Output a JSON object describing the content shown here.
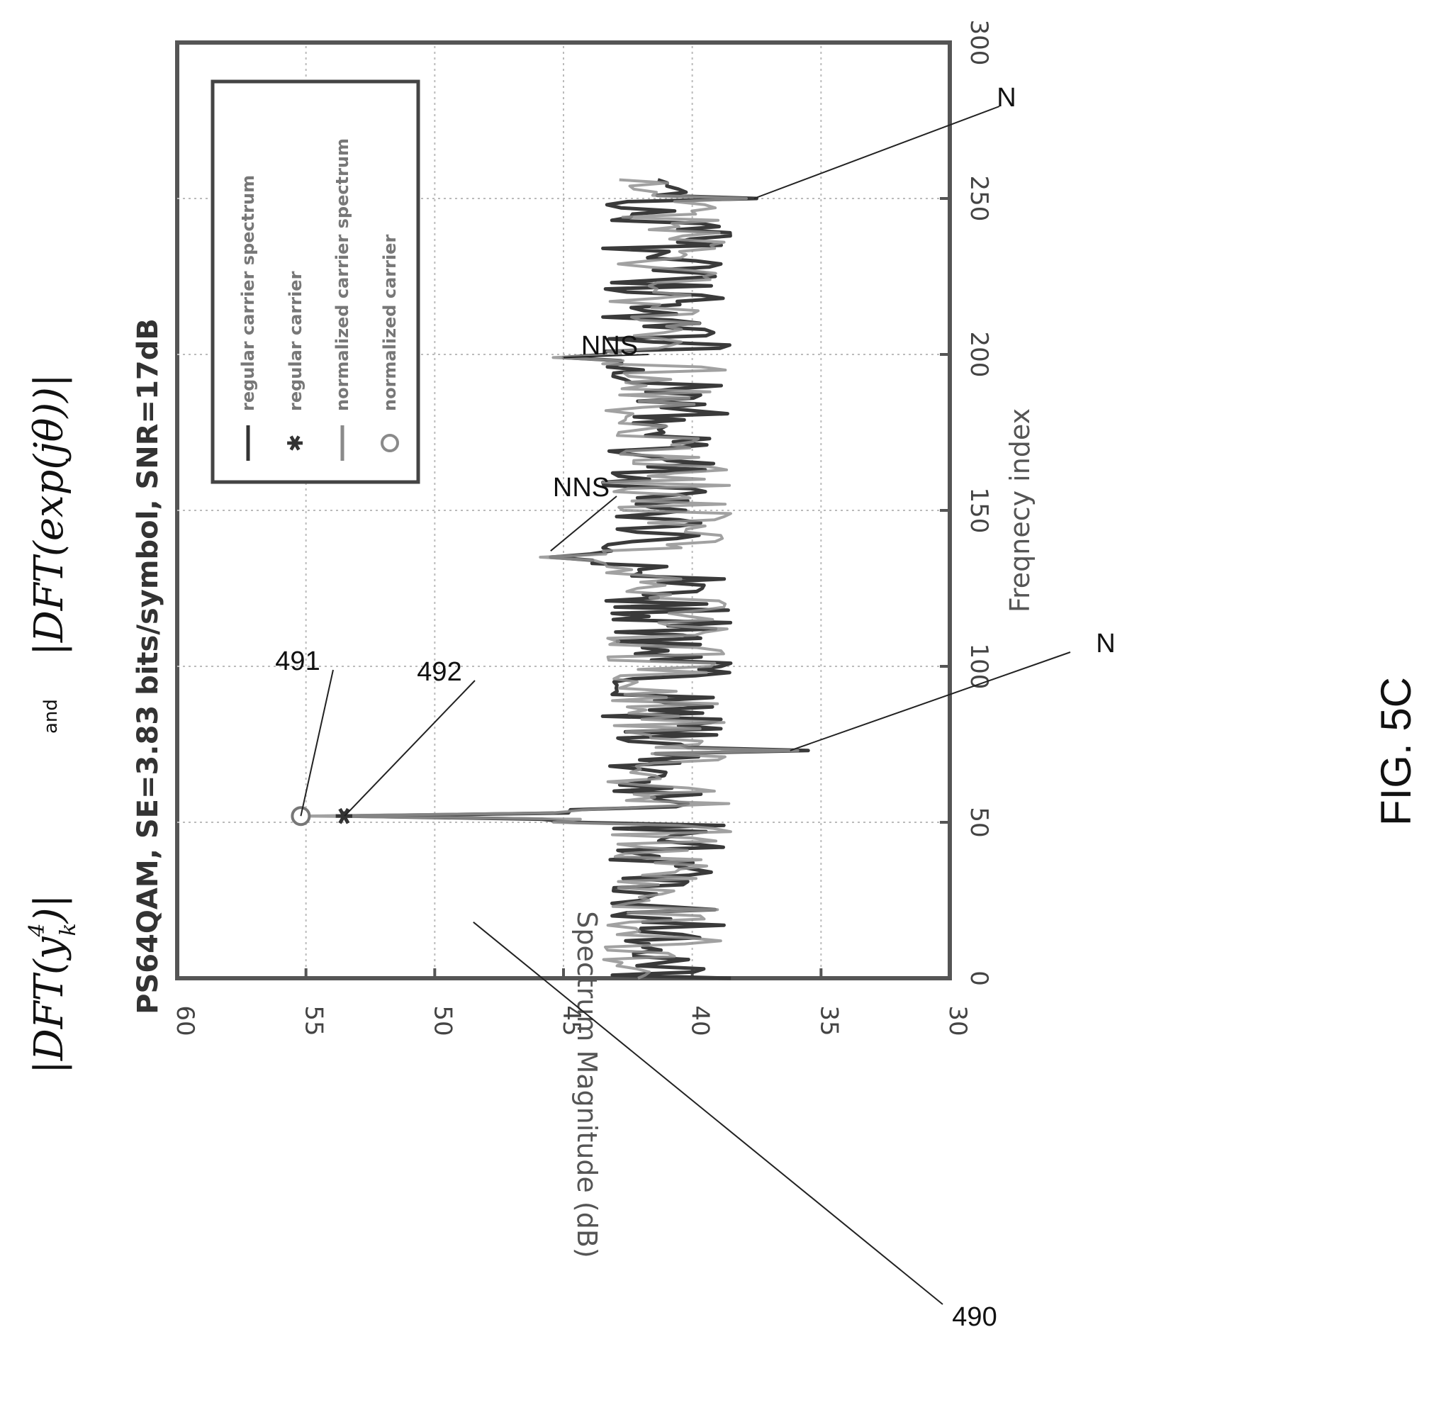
{
  "chart_data": {
    "type": "line",
    "title_math": {
      "part1": "|DFT(y",
      "part1_sup": "4",
      "part1_sub": "k",
      "part1_close": ")|",
      "and": "and",
      "part2": "|DFT(exp(jθ))|"
    },
    "subtitle": "PS64QAM, SE=3.83 bits/symbol, SNR=17dB",
    "xlabel": "Freqnecy index",
    "ylabel": "Spectrum Magnitude (dB)",
    "xlim": [
      0,
      300
    ],
    "ylim": [
      30,
      60
    ],
    "xticks": [
      "0",
      "50",
      "100",
      "150",
      "200",
      "250",
      "300"
    ],
    "yticks": [
      "30",
      "35",
      "40",
      "45",
      "50",
      "55",
      "60"
    ],
    "grid": true,
    "legend_position": "top-right",
    "legend": [
      {
        "name": "regular carrier spectrum",
        "marker": "line",
        "color": "#333333"
      },
      {
        "name": "regular carrier",
        "marker": "star",
        "color": "#333333"
      },
      {
        "name": "normalized carrier spectrum",
        "marker": "line",
        "color": "#8a8a8a"
      },
      {
        "name": "normalized carrier",
        "marker": "circle",
        "color": "#8a8a8a"
      }
    ],
    "series": [
      {
        "name": "regular carrier spectrum",
        "color": "#3a3a3a",
        "noise_range": [
          38.5,
          43.5
        ],
        "length": 256,
        "peak": {
          "x": 52,
          "y": 53.5
        }
      },
      {
        "name": "normalized carrier spectrum",
        "color": "#909090",
        "noise_range": [
          38.5,
          43.5
        ],
        "length": 256,
        "peak": {
          "x": 52,
          "y": 55.2
        }
      }
    ],
    "markers": [
      {
        "name": "normalized carrier",
        "x": 52,
        "y": 55.2,
        "shape": "circle"
      },
      {
        "name": "regular carrier",
        "x": 52,
        "y": 53.5,
        "shape": "star"
      }
    ],
    "features": [
      {
        "x": 73,
        "y": 35.5,
        "kind": "dip"
      },
      {
        "x": 135,
        "y": 45.5,
        "kind": "spike"
      },
      {
        "x": 199,
        "y": 45.0,
        "kind": "spike"
      },
      {
        "x": 250,
        "y": 37.5,
        "kind": "dip"
      }
    ],
    "annotations": [
      {
        "text": "490",
        "pointer_x": 18,
        "pointer_y": 48.5
      },
      {
        "text": "491",
        "pointer_x": 52,
        "pointer_y": 55.2
      },
      {
        "text": "492",
        "pointer_x": 52,
        "pointer_y": 53.5
      },
      {
        "text": "N",
        "pointer_x": 73,
        "pointer_y": 36.2
      },
      {
        "text": "NNS",
        "pointer_x": 137,
        "pointer_y": 45.5
      },
      {
        "text": "NNS",
        "pointer_x": 199,
        "pointer_y": 45.0
      },
      {
        "text": "N",
        "pointer_x": 250,
        "pointer_y": 37.6
      }
    ]
  },
  "figure_label": "FIG. 5C"
}
